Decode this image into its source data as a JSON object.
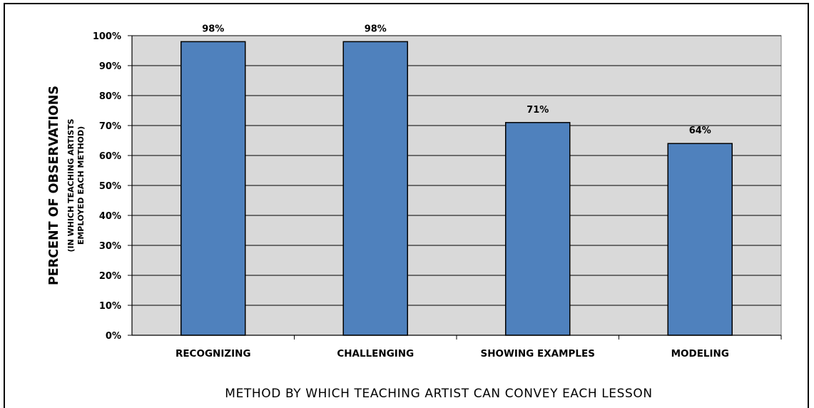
{
  "chart_data": {
    "type": "bar",
    "categories": [
      "RECOGNIZING",
      "CHALLENGING",
      "SHOWING EXAMPLES",
      "MODELING"
    ],
    "values": [
      98,
      98,
      71,
      64
    ],
    "data_labels": [
      "98%",
      "98%",
      "71%",
      "64%"
    ],
    "ylabel": "PERCENT OF OBSERVATIONS",
    "ylabel_sub_line1": "(IN WHICH TEACHING ARTISTS",
    "ylabel_sub_line2": "EMPLOYED EACH METHOD)",
    "xlabel": "METHOD BY WHICH TEACHING ARTIST CAN CONVEY EACH LESSON",
    "ylim": [
      0,
      100
    ],
    "y_ticks": [
      "0%",
      "10%",
      "20%",
      "30%",
      "40%",
      "50%",
      "60%",
      "70%",
      "80%",
      "90%",
      "100%"
    ],
    "grid": true,
    "bar_color": "#4f81bd",
    "plot_background": "#d9d9d9"
  }
}
